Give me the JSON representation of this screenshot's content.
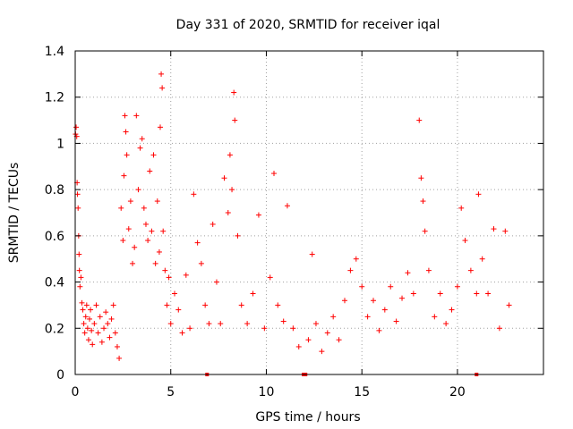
{
  "chart_data": {
    "type": "scatter",
    "title": "Day 331 of 2020, SRMTID for receiver iqal",
    "xlabel": "GPS time / hours",
    "ylabel": "SRMTID / TECUs",
    "xlim": [
      0,
      24.5
    ],
    "ylim": [
      0,
      1.4
    ],
    "xticks": [
      0,
      5,
      10,
      15,
      20
    ],
    "yticks": [
      0,
      0.2,
      0.4,
      0.6,
      0.8,
      1,
      1.2,
      1.4
    ],
    "grid": true,
    "marker": "+",
    "color": "#ff0000",
    "series": [
      {
        "name": "SRMTID",
        "zero_markers_x": [
          6.9,
          11.95,
          12.05,
          21.0
        ],
        "points": [
          [
            0.02,
            1.04
          ],
          [
            0.05,
            1.07
          ],
          [
            0.08,
            1.03
          ],
          [
            0.1,
            0.83
          ],
          [
            0.12,
            0.78
          ],
          [
            0.15,
            0.72
          ],
          [
            0.18,
            0.6
          ],
          [
            0.2,
            0.52
          ],
          [
            0.22,
            0.45
          ],
          [
            0.25,
            0.38
          ],
          [
            0.3,
            0.42
          ],
          [
            0.35,
            0.31
          ],
          [
            0.4,
            0.28
          ],
          [
            0.45,
            0.22
          ],
          [
            0.5,
            0.18
          ],
          [
            0.55,
            0.25
          ],
          [
            0.6,
            0.3
          ],
          [
            0.65,
            0.2
          ],
          [
            0.7,
            0.15
          ],
          [
            0.75,
            0.24
          ],
          [
            0.8,
            0.28
          ],
          [
            0.85,
            0.19
          ],
          [
            0.9,
            0.13
          ],
          [
            1.0,
            0.22
          ],
          [
            1.1,
            0.3
          ],
          [
            1.2,
            0.18
          ],
          [
            1.3,
            0.25
          ],
          [
            1.4,
            0.14
          ],
          [
            1.5,
            0.2
          ],
          [
            1.6,
            0.27
          ],
          [
            1.7,
            0.22
          ],
          [
            1.8,
            0.16
          ],
          [
            1.9,
            0.24
          ],
          [
            2.0,
            0.3
          ],
          [
            2.1,
            0.18
          ],
          [
            2.2,
            0.12
          ],
          [
            2.3,
            0.07
          ],
          [
            2.4,
            0.72
          ],
          [
            2.5,
            0.58
          ],
          [
            2.55,
            0.86
          ],
          [
            2.6,
            1.12
          ],
          [
            2.65,
            1.05
          ],
          [
            2.7,
            0.95
          ],
          [
            2.8,
            0.63
          ],
          [
            2.9,
            0.75
          ],
          [
            3.0,
            0.48
          ],
          [
            3.1,
            0.55
          ],
          [
            3.2,
            1.12
          ],
          [
            3.3,
            0.8
          ],
          [
            3.4,
            0.98
          ],
          [
            3.5,
            1.02
          ],
          [
            3.6,
            0.72
          ],
          [
            3.7,
            0.65
          ],
          [
            3.8,
            0.58
          ],
          [
            3.9,
            0.88
          ],
          [
            4.0,
            0.62
          ],
          [
            4.1,
            0.95
          ],
          [
            4.2,
            0.48
          ],
          [
            4.3,
            0.75
          ],
          [
            4.4,
            0.53
          ],
          [
            4.45,
            1.07
          ],
          [
            4.5,
            1.3
          ],
          [
            4.55,
            1.24
          ],
          [
            4.6,
            0.62
          ],
          [
            4.7,
            0.45
          ],
          [
            4.8,
            0.3
          ],
          [
            4.9,
            0.42
          ],
          [
            5.0,
            0.22
          ],
          [
            5.2,
            0.35
          ],
          [
            5.4,
            0.28
          ],
          [
            5.6,
            0.18
          ],
          [
            5.8,
            0.43
          ],
          [
            6.0,
            0.2
          ],
          [
            6.2,
            0.78
          ],
          [
            6.4,
            0.57
          ],
          [
            6.6,
            0.48
          ],
          [
            6.8,
            0.3
          ],
          [
            7.0,
            0.22
          ],
          [
            7.2,
            0.65
          ],
          [
            7.4,
            0.4
          ],
          [
            7.6,
            0.22
          ],
          [
            7.8,
            0.85
          ],
          [
            8.0,
            0.7
          ],
          [
            8.1,
            0.95
          ],
          [
            8.2,
            0.8
          ],
          [
            8.3,
            1.22
          ],
          [
            8.35,
            1.1
          ],
          [
            8.5,
            0.6
          ],
          [
            8.7,
            0.3
          ],
          [
            9.0,
            0.22
          ],
          [
            9.3,
            0.35
          ],
          [
            9.6,
            0.69
          ],
          [
            9.9,
            0.2
          ],
          [
            10.2,
            0.42
          ],
          [
            10.4,
            0.87
          ],
          [
            10.6,
            0.3
          ],
          [
            10.9,
            0.23
          ],
          [
            11.1,
            0.73
          ],
          [
            11.4,
            0.2
          ],
          [
            11.7,
            0.12
          ],
          [
            12.2,
            0.15
          ],
          [
            12.4,
            0.52
          ],
          [
            12.6,
            0.22
          ],
          [
            12.9,
            0.1
          ],
          [
            13.2,
            0.18
          ],
          [
            13.5,
            0.25
          ],
          [
            13.8,
            0.15
          ],
          [
            14.1,
            0.32
          ],
          [
            14.4,
            0.45
          ],
          [
            14.7,
            0.5
          ],
          [
            15.0,
            0.38
          ],
          [
            15.3,
            0.25
          ],
          [
            15.6,
            0.32
          ],
          [
            15.9,
            0.19
          ],
          [
            16.2,
            0.28
          ],
          [
            16.5,
            0.38
          ],
          [
            16.8,
            0.23
          ],
          [
            17.1,
            0.33
          ],
          [
            17.4,
            0.44
          ],
          [
            17.7,
            0.35
          ],
          [
            18.0,
            1.1
          ],
          [
            18.1,
            0.85
          ],
          [
            18.2,
            0.75
          ],
          [
            18.3,
            0.62
          ],
          [
            18.5,
            0.45
          ],
          [
            18.8,
            0.25
          ],
          [
            19.1,
            0.35
          ],
          [
            19.4,
            0.22
          ],
          [
            19.7,
            0.28
          ],
          [
            20.0,
            0.38
          ],
          [
            20.2,
            0.72
          ],
          [
            20.4,
            0.58
          ],
          [
            20.7,
            0.45
          ],
          [
            21.0,
            0.35
          ],
          [
            21.1,
            0.78
          ],
          [
            21.3,
            0.5
          ],
          [
            21.6,
            0.35
          ],
          [
            21.9,
            0.63
          ],
          [
            22.2,
            0.2
          ],
          [
            22.5,
            0.62
          ],
          [
            22.7,
            0.3
          ]
        ]
      }
    ]
  }
}
